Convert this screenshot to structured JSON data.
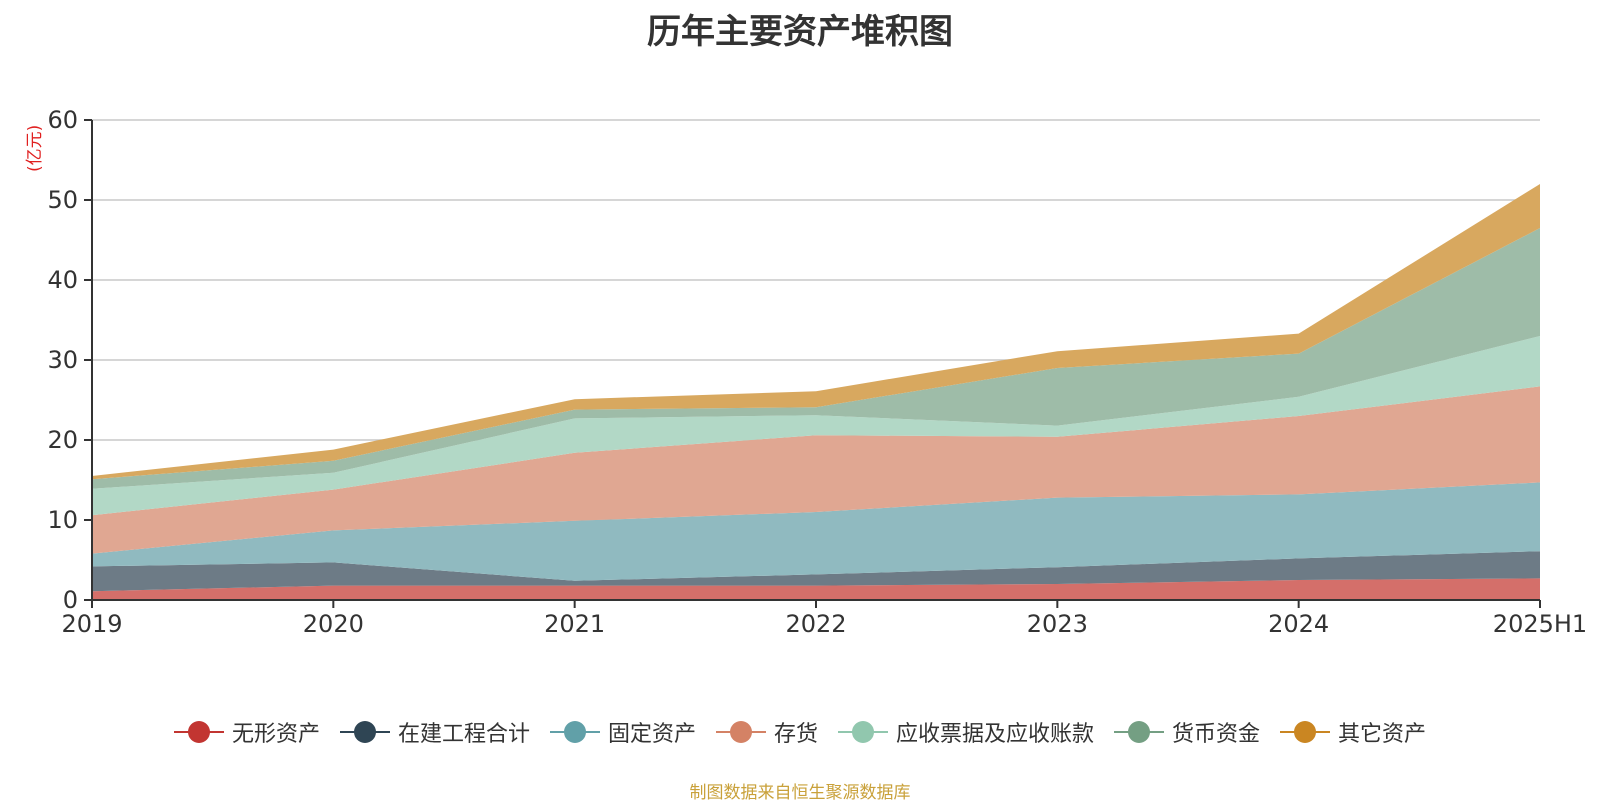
{
  "chart_data": {
    "type": "area",
    "stacked": true,
    "title": "历年主要资产堆积图",
    "unit_label": "(亿元)",
    "source_note": "制图数据来自恒生聚源数据库",
    "categories": [
      "2019",
      "2020",
      "2021",
      "2022",
      "2023",
      "2024",
      "2025H1"
    ],
    "ylim": [
      0,
      60
    ],
    "yticks": [
      0,
      10,
      20,
      30,
      40,
      50,
      60
    ],
    "grid": true,
    "legend_position": "bottom",
    "series": [
      {
        "name": "无形资产",
        "color": "#c23531",
        "fill": "#d46f6a",
        "values": [
          1.1,
          1.8,
          1.8,
          1.8,
          2.0,
          2.5,
          2.7
        ]
      },
      {
        "name": "在建工程合计",
        "color": "#2f4554",
        "fill": "#6d7b86",
        "values": [
          3.1,
          2.9,
          0.6,
          1.4,
          2.1,
          2.7,
          3.4
        ]
      },
      {
        "name": "固定资产",
        "color": "#61a0a8",
        "fill": "#90bac0",
        "values": [
          1.6,
          4.0,
          7.5,
          7.8,
          8.7,
          8.0,
          8.6
        ]
      },
      {
        "name": "存货",
        "color": "#d48265",
        "fill": "#e0a792",
        "values": [
          4.8,
          5.1,
          8.5,
          9.6,
          7.6,
          9.8,
          12.0
        ]
      },
      {
        "name": "应收票据及应收账款",
        "color": "#91c7ae",
        "fill": "#b2d8c6",
        "values": [
          3.3,
          2.1,
          4.3,
          2.5,
          1.4,
          2.4,
          6.3
        ]
      },
      {
        "name": "货币资金",
        "color": "#749f83",
        "fill": "#9ebca8",
        "values": [
          1.2,
          1.5,
          1.1,
          1.0,
          7.2,
          5.4,
          13.5
        ]
      },
      {
        "name": "其它资产",
        "color": "#ca8622",
        "fill": "#d8a85f",
        "values": [
          0.4,
          1.4,
          1.3,
          2.0,
          2.1,
          2.5,
          5.5
        ]
      }
    ]
  }
}
